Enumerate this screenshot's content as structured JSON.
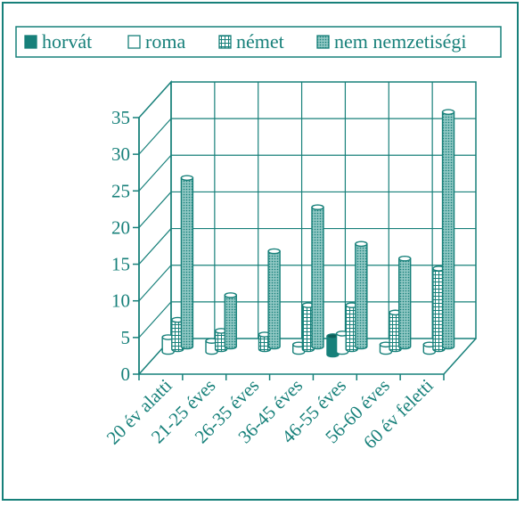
{
  "chart_data": {
    "type": "bar",
    "style": "3d-cylinder-clustered",
    "categories": [
      "20 év alatti",
      "21-25 éves",
      "26-35 éves",
      "36-45 éves",
      "46-55 éves",
      "56-60 éves",
      "60 év feletti"
    ],
    "series": [
      {
        "name": "horvát",
        "pattern": "solid",
        "values": [
          0,
          0,
          0,
          0,
          2.5,
          0,
          0
        ]
      },
      {
        "name": "roma",
        "pattern": "white",
        "values": [
          2,
          1.5,
          0,
          1,
          2.5,
          1,
          1
        ]
      },
      {
        "name": "német",
        "pattern": "grid",
        "values": [
          4,
          2.5,
          2,
          6,
          6,
          5,
          11
        ]
      },
      {
        "name": "nem nemzetiségi",
        "pattern": "dots",
        "values": [
          23,
          7,
          13,
          19,
          14,
          12,
          32
        ]
      }
    ],
    "yticks": [
      0,
      5,
      10,
      15,
      20,
      25,
      30,
      35
    ],
    "ylim": [
      0,
      35
    ],
    "grid": true,
    "legend": "top",
    "colors": {
      "main": "#17807a",
      "fill": "#ffffff"
    }
  }
}
